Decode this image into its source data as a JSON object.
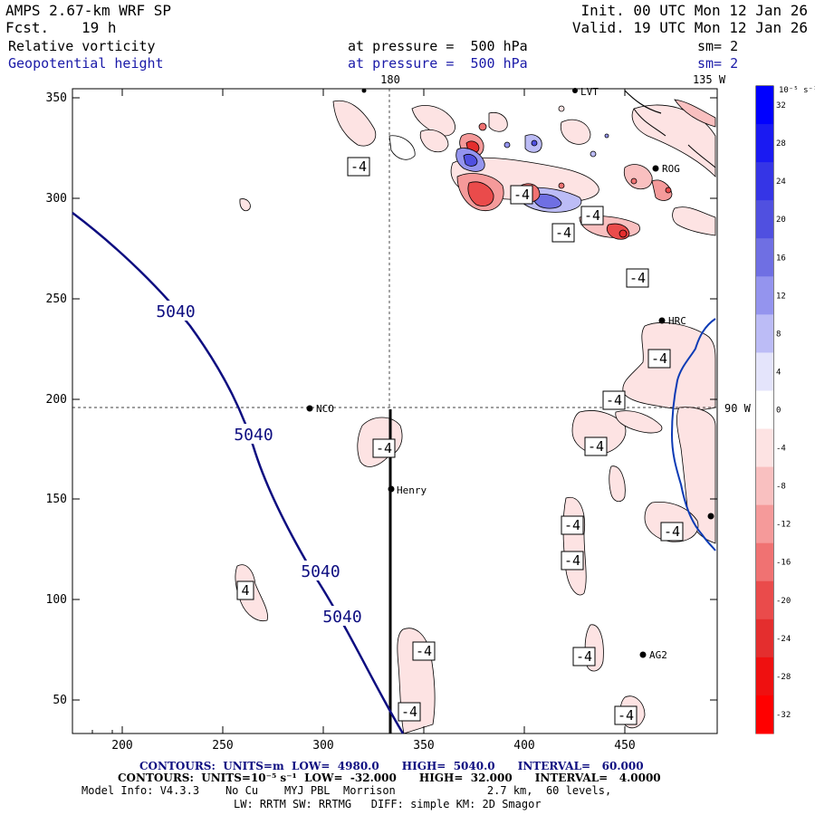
{
  "header": {
    "model": "AMPS 2.67-km WRF SP",
    "fcst_label": "Fcst.",
    "fcst_value": "19 h",
    "init": "Init. 00 UTC Mon 12 Jan 26",
    "valid": "Valid. 19 UTC Mon 12 Jan 26",
    "field1": {
      "name": "Relative vorticity",
      "pressure": "at pressure =  500 hPa",
      "smooth": "sm= 2"
    },
    "field2": {
      "name": "Geopotential height",
      "pressure": "at pressure =  500 hPa",
      "smooth": "sm= 2"
    }
  },
  "map": {
    "x_ticks": [
      "200",
      "250",
      "300",
      "350",
      "400",
      "450"
    ],
    "y_ticks": [
      "350",
      "300",
      "250",
      "200",
      "150",
      "100",
      "50"
    ],
    "longitude_labels": {
      "top_180": "180",
      "top_135w": "135 W",
      "right_90w": "90 W"
    },
    "stations": [
      {
        "id": "NCO",
        "label": "NCO"
      },
      {
        "id": "Henry",
        "label": "Henry"
      },
      {
        "id": "HRC",
        "label": "HRC"
      },
      {
        "id": "AG2",
        "label": "AG2"
      },
      {
        "id": "ROG",
        "label": "ROG"
      },
      {
        "id": "LVT",
        "label": "LVT"
      }
    ],
    "height_contour_labels": [
      "5040",
      "5040",
      "5040",
      "5040"
    ],
    "vorticity_labels": [
      "-4",
      "-4",
      "-4",
      "-4",
      "-4",
      "-4",
      "-4",
      "-4",
      "-4",
      "-4",
      "-4",
      "-4",
      "-4",
      "-4",
      "-4",
      "-4",
      "4"
    ]
  },
  "colorbar": {
    "unit": "10⁻⁵ s⁻¹",
    "ticks": [
      "32",
      "28",
      "24",
      "20",
      "16",
      "12",
      "8",
      "4",
      "0",
      "-4",
      "-8",
      "-12",
      "-16",
      "-20",
      "-24",
      "-28",
      "-32"
    ],
    "colors": [
      "#0000ff",
      "#1a1af2",
      "#3535e6",
      "#5050e0",
      "#6f6fe3",
      "#9494ee",
      "#bcbcf6",
      "#e4e4fb",
      "#ffffff",
      "#fde3e3",
      "#f9c0c0",
      "#f59a9a",
      "#f07272",
      "#ea4b4b",
      "#e42e2e",
      "#ef1010",
      "#ff0000"
    ]
  },
  "footer": {
    "line1": "CONTOURS:  UNITS=m  LOW=  4980.0      HIGH=  5040.0      INTERVAL=   60.000",
    "line2": "CONTOURS:  UNITS=10⁻⁵ s⁻¹  LOW=  -32.000      HIGH=  32.000      INTERVAL=   4.0000",
    "line3": "Model Info: V4.3.3    No Cu    MYJ PBL  Morrison              2.7 km,  60 levels,",
    "line4": "LW: RRTM SW: RRTMG   DIFF: simple KM: 2D Smagor"
  }
}
